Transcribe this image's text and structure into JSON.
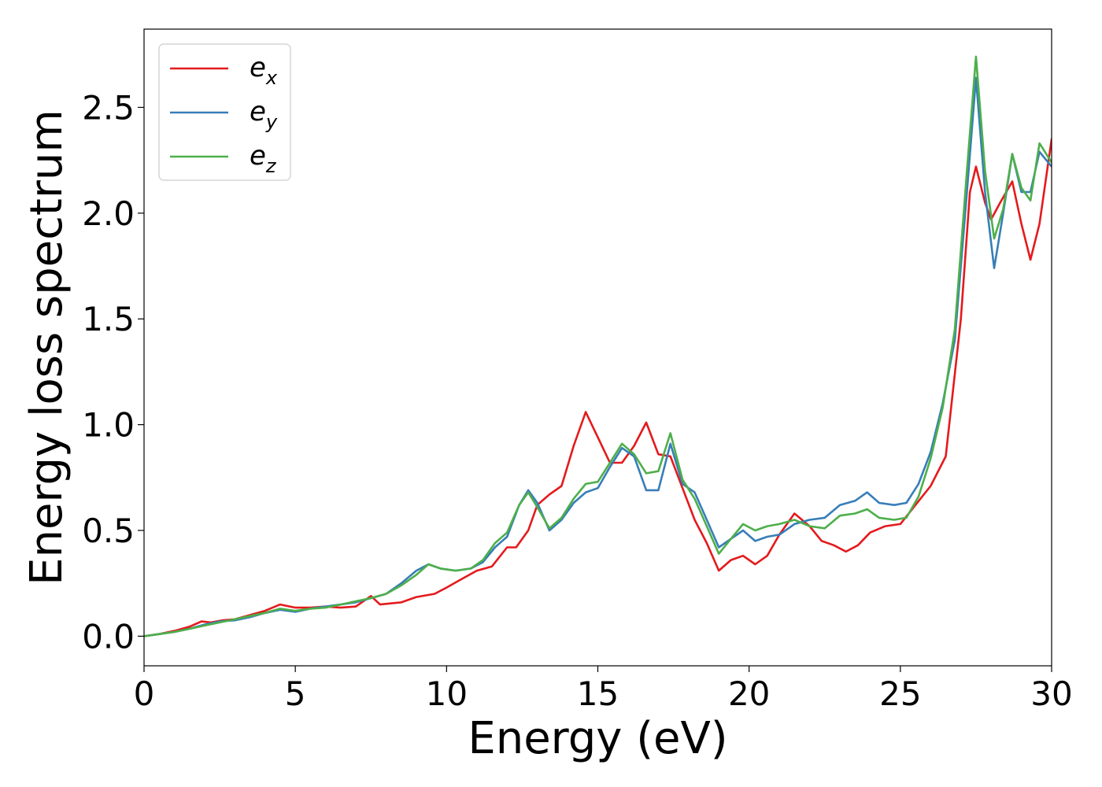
{
  "chart_data": {
    "type": "line",
    "xlabel": "Energy (eV)",
    "ylabel": "Energy loss spectrum",
    "xlim": [
      0,
      30
    ],
    "ylim": [
      -0.14,
      2.87
    ],
    "xticks": [
      0,
      5,
      10,
      15,
      20,
      25,
      30
    ],
    "xtick_labels": [
      "0",
      "5",
      "10",
      "15",
      "20",
      "25",
      "30"
    ],
    "yticks": [
      0.0,
      0.5,
      1.0,
      1.5,
      2.0,
      2.5
    ],
    "ytick_labels": [
      "0.0",
      "0.5",
      "1.0",
      "1.5",
      "2.0",
      "2.5"
    ],
    "grid": false,
    "legend_position": "top-left",
    "series": [
      {
        "name": "e",
        "subscript": "x",
        "color": "#e41a1c",
        "points": [
          [
            0,
            0.0
          ],
          [
            0.5,
            0.01
          ],
          [
            1.0,
            0.025
          ],
          [
            1.5,
            0.045
          ],
          [
            1.9,
            0.07
          ],
          [
            2.2,
            0.065
          ],
          [
            2.6,
            0.075
          ],
          [
            3.0,
            0.08
          ],
          [
            3.5,
            0.1
          ],
          [
            4.0,
            0.12
          ],
          [
            4.5,
            0.15
          ],
          [
            5.0,
            0.135
          ],
          [
            5.5,
            0.135
          ],
          [
            6.0,
            0.14
          ],
          [
            6.5,
            0.135
          ],
          [
            7.0,
            0.14
          ],
          [
            7.5,
            0.19
          ],
          [
            7.8,
            0.15
          ],
          [
            8.5,
            0.16
          ],
          [
            9.0,
            0.185
          ],
          [
            9.6,
            0.2
          ],
          [
            10.0,
            0.23
          ],
          [
            10.5,
            0.27
          ],
          [
            11.0,
            0.31
          ],
          [
            11.5,
            0.33
          ],
          [
            12.0,
            0.42
          ],
          [
            12.3,
            0.42
          ],
          [
            12.7,
            0.5
          ],
          [
            13.0,
            0.62
          ],
          [
            13.4,
            0.67
          ],
          [
            13.8,
            0.71
          ],
          [
            14.2,
            0.9
          ],
          [
            14.6,
            1.06
          ],
          [
            15.0,
            0.94
          ],
          [
            15.4,
            0.82
          ],
          [
            15.8,
            0.82
          ],
          [
            16.2,
            0.9
          ],
          [
            16.6,
            1.01
          ],
          [
            17.0,
            0.86
          ],
          [
            17.4,
            0.85
          ],
          [
            17.8,
            0.7
          ],
          [
            18.2,
            0.55
          ],
          [
            18.6,
            0.44
          ],
          [
            19.0,
            0.31
          ],
          [
            19.4,
            0.36
          ],
          [
            19.8,
            0.38
          ],
          [
            20.2,
            0.34
          ],
          [
            20.6,
            0.38
          ],
          [
            21.0,
            0.48
          ],
          [
            21.5,
            0.58
          ],
          [
            22.0,
            0.52
          ],
          [
            22.4,
            0.45
          ],
          [
            22.8,
            0.43
          ],
          [
            23.2,
            0.4
          ],
          [
            23.6,
            0.43
          ],
          [
            24.0,
            0.49
          ],
          [
            24.5,
            0.52
          ],
          [
            25.0,
            0.53
          ],
          [
            25.5,
            0.62
          ],
          [
            26.0,
            0.71
          ],
          [
            26.5,
            0.85
          ],
          [
            27.0,
            1.5
          ],
          [
            27.3,
            2.1
          ],
          [
            27.5,
            2.22
          ],
          [
            27.8,
            2.05
          ],
          [
            28.0,
            1.97
          ],
          [
            28.3,
            2.05
          ],
          [
            28.7,
            2.15
          ],
          [
            29.0,
            1.95
          ],
          [
            29.3,
            1.78
          ],
          [
            29.6,
            1.95
          ],
          [
            30.0,
            2.35
          ]
        ]
      },
      {
        "name": "e",
        "subscript": "y",
        "color": "#377eb8",
        "points": [
          [
            0,
            0.0
          ],
          [
            0.5,
            0.01
          ],
          [
            1.0,
            0.02
          ],
          [
            1.5,
            0.035
          ],
          [
            2.0,
            0.055
          ],
          [
            2.5,
            0.07
          ],
          [
            3.0,
            0.075
          ],
          [
            3.5,
            0.09
          ],
          [
            4.0,
            0.11
          ],
          [
            4.5,
            0.125
          ],
          [
            5.0,
            0.115
          ],
          [
            5.5,
            0.13
          ],
          [
            6.0,
            0.14
          ],
          [
            6.5,
            0.15
          ],
          [
            7.0,
            0.16
          ],
          [
            7.5,
            0.18
          ],
          [
            8.0,
            0.2
          ],
          [
            8.5,
            0.25
          ],
          [
            9.0,
            0.31
          ],
          [
            9.4,
            0.34
          ],
          [
            9.8,
            0.32
          ],
          [
            10.3,
            0.31
          ],
          [
            10.8,
            0.32
          ],
          [
            11.2,
            0.35
          ],
          [
            11.6,
            0.42
          ],
          [
            12.0,
            0.47
          ],
          [
            12.4,
            0.62
          ],
          [
            12.7,
            0.69
          ],
          [
            13.0,
            0.63
          ],
          [
            13.4,
            0.5
          ],
          [
            13.8,
            0.55
          ],
          [
            14.2,
            0.63
          ],
          [
            14.6,
            0.68
          ],
          [
            15.0,
            0.7
          ],
          [
            15.4,
            0.8
          ],
          [
            15.8,
            0.89
          ],
          [
            16.2,
            0.85
          ],
          [
            16.6,
            0.69
          ],
          [
            17.0,
            0.69
          ],
          [
            17.4,
            0.91
          ],
          [
            17.8,
            0.72
          ],
          [
            18.2,
            0.68
          ],
          [
            18.6,
            0.55
          ],
          [
            19.0,
            0.42
          ],
          [
            19.4,
            0.46
          ],
          [
            19.8,
            0.5
          ],
          [
            20.2,
            0.45
          ],
          [
            20.6,
            0.47
          ],
          [
            21.0,
            0.48
          ],
          [
            21.5,
            0.53
          ],
          [
            22.0,
            0.55
          ],
          [
            22.5,
            0.56
          ],
          [
            23.0,
            0.62
          ],
          [
            23.5,
            0.64
          ],
          [
            23.9,
            0.68
          ],
          [
            24.3,
            0.63
          ],
          [
            24.8,
            0.62
          ],
          [
            25.2,
            0.63
          ],
          [
            25.6,
            0.72
          ],
          [
            26.0,
            0.87
          ],
          [
            26.4,
            1.1
          ],
          [
            26.8,
            1.4
          ],
          [
            27.2,
            2.1
          ],
          [
            27.5,
            2.64
          ],
          [
            27.8,
            2.1
          ],
          [
            28.1,
            1.74
          ],
          [
            28.4,
            2.0
          ],
          [
            28.7,
            2.28
          ],
          [
            29.0,
            2.1
          ],
          [
            29.3,
            2.1
          ],
          [
            29.6,
            2.29
          ],
          [
            30.0,
            2.22
          ]
        ]
      },
      {
        "name": "e",
        "subscript": "z",
        "color": "#4daf4a",
        "points": [
          [
            0,
            0.0
          ],
          [
            0.5,
            0.01
          ],
          [
            1.0,
            0.02
          ],
          [
            1.5,
            0.035
          ],
          [
            2.0,
            0.05
          ],
          [
            2.5,
            0.065
          ],
          [
            3.0,
            0.08
          ],
          [
            3.5,
            0.095
          ],
          [
            4.0,
            0.11
          ],
          [
            4.5,
            0.13
          ],
          [
            5.0,
            0.12
          ],
          [
            5.5,
            0.13
          ],
          [
            6.0,
            0.135
          ],
          [
            6.5,
            0.15
          ],
          [
            7.0,
            0.165
          ],
          [
            7.5,
            0.18
          ],
          [
            8.0,
            0.2
          ],
          [
            8.5,
            0.24
          ],
          [
            9.0,
            0.29
          ],
          [
            9.4,
            0.34
          ],
          [
            9.8,
            0.32
          ],
          [
            10.3,
            0.31
          ],
          [
            10.8,
            0.32
          ],
          [
            11.2,
            0.36
          ],
          [
            11.6,
            0.44
          ],
          [
            12.0,
            0.49
          ],
          [
            12.4,
            0.62
          ],
          [
            12.7,
            0.68
          ],
          [
            13.0,
            0.61
          ],
          [
            13.4,
            0.51
          ],
          [
            13.8,
            0.56
          ],
          [
            14.2,
            0.65
          ],
          [
            14.6,
            0.72
          ],
          [
            15.0,
            0.73
          ],
          [
            15.4,
            0.82
          ],
          [
            15.8,
            0.91
          ],
          [
            16.2,
            0.86
          ],
          [
            16.6,
            0.77
          ],
          [
            17.0,
            0.78
          ],
          [
            17.4,
            0.96
          ],
          [
            17.8,
            0.74
          ],
          [
            18.2,
            0.65
          ],
          [
            18.6,
            0.52
          ],
          [
            19.0,
            0.39
          ],
          [
            19.4,
            0.46
          ],
          [
            19.8,
            0.53
          ],
          [
            20.2,
            0.5
          ],
          [
            20.6,
            0.52
          ],
          [
            21.0,
            0.53
          ],
          [
            21.5,
            0.55
          ],
          [
            22.0,
            0.52
          ],
          [
            22.5,
            0.51
          ],
          [
            23.0,
            0.57
          ],
          [
            23.5,
            0.58
          ],
          [
            23.9,
            0.6
          ],
          [
            24.3,
            0.56
          ],
          [
            24.8,
            0.55
          ],
          [
            25.2,
            0.56
          ],
          [
            25.6,
            0.66
          ],
          [
            26.0,
            0.84
          ],
          [
            26.4,
            1.08
          ],
          [
            26.8,
            1.45
          ],
          [
            27.2,
            2.2
          ],
          [
            27.5,
            2.74
          ],
          [
            27.8,
            2.2
          ],
          [
            28.1,
            1.88
          ],
          [
            28.4,
            2.02
          ],
          [
            28.7,
            2.28
          ],
          [
            29.0,
            2.12
          ],
          [
            29.3,
            2.06
          ],
          [
            29.6,
            2.33
          ],
          [
            30.0,
            2.24
          ]
        ]
      }
    ]
  }
}
